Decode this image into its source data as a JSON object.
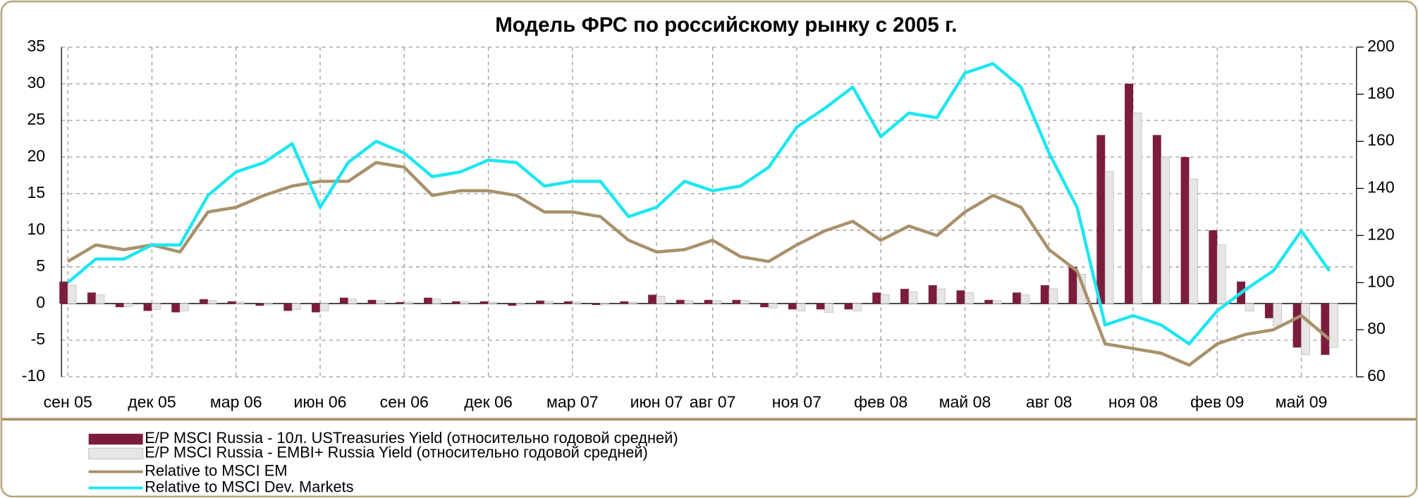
{
  "chart_data": {
    "type": "bar_line",
    "title": "Модель ФРС по российскому рынку с 2005 г.",
    "categories": [
      "сен 05",
      null,
      null,
      "дек 05",
      null,
      null,
      "мар 06",
      null,
      null,
      "июн 06",
      null,
      null,
      "сен 06",
      null,
      null,
      "дек 06",
      null,
      null,
      "мар 07",
      null,
      null,
      "июн 07",
      null,
      "авг 07",
      null,
      null,
      "ноя 07",
      null,
      null,
      "фев 08",
      null,
      null,
      "май 08",
      null,
      null,
      "авг 08",
      null,
      null,
      "ноя 08",
      null,
      null,
      "фев 09",
      null,
      null,
      "май 09",
      null
    ],
    "series": [
      {
        "name": "E/P MSCI Russia - 10л. USTreasuries Yield (относительно годовой средней)",
        "kind": "bar",
        "color": "#7b1c3e",
        "values": [
          3,
          1.5,
          -0.5,
          -1,
          -1.2,
          0.6,
          0.3,
          -0.3,
          -1,
          -1.2,
          0.8,
          0.5,
          0.2,
          0.8,
          0.3,
          0.3,
          -0.3,
          0.4,
          0.3,
          -0.2,
          0.3,
          1.2,
          0.5,
          0.5,
          0.5,
          -0.5,
          -0.8,
          -0.8,
          -0.8,
          1.5,
          2,
          2.5,
          1.8,
          0.5,
          1.5,
          2.5,
          5,
          23,
          30,
          23,
          20,
          10,
          3,
          -2,
          -6,
          -7
        ]
      },
      {
        "name": "E/P MSCI Russia - EMBI+ Russia Yield (относительно годовой средней)",
        "kind": "bar",
        "color": "#e6e6e6",
        "values": [
          2.5,
          1.2,
          -0.4,
          -0.8,
          -1,
          0.4,
          0.2,
          -0.2,
          -0.8,
          -1,
          0.6,
          0.4,
          0.2,
          0.6,
          0.3,
          0.2,
          -0.2,
          0.3,
          0.2,
          -0.2,
          0.2,
          1,
          0.4,
          0.4,
          0.4,
          -0.6,
          -1,
          -1.2,
          -1,
          1.2,
          1.6,
          2,
          1.5,
          0.4,
          1.2,
          2,
          4,
          18,
          26,
          20,
          17,
          8,
          -1,
          -3,
          -7,
          -6
        ]
      },
      {
        "name": "Relative to MSCI EM",
        "kind": "line",
        "axis": "y2",
        "color": "#a8916a",
        "values": [
          109,
          116,
          114,
          116,
          113,
          130,
          132,
          137,
          141,
          143,
          143,
          151,
          149,
          137,
          139,
          139,
          137,
          130,
          130,
          128,
          118,
          113,
          114,
          118,
          111,
          109,
          116,
          122,
          126,
          118,
          124,
          120,
          130,
          137,
          132,
          114,
          105,
          74,
          72,
          70,
          65,
          74,
          78,
          80,
          86,
          76
        ]
      },
      {
        "name": "Relative to MSCI Dev. Markets",
        "kind": "line",
        "axis": "y2",
        "color": "#1ee6f0",
        "values": [
          100,
          110,
          110,
          116,
          116,
          137,
          147,
          151,
          159,
          132,
          151,
          160,
          155,
          145,
          147,
          152,
          151,
          141,
          143,
          143,
          128,
          132,
          143,
          139,
          141,
          149,
          166,
          174,
          183,
          162,
          172,
          170,
          189,
          193,
          183,
          155,
          132,
          82,
          86,
          82,
          74,
          88,
          97,
          105,
          122,
          105
        ]
      }
    ],
    "ylim": [
      -10,
      35
    ],
    "yticks": [
      -10,
      -5,
      0,
      5,
      10,
      15,
      20,
      25,
      30,
      35
    ],
    "y2lim": [
      60,
      200
    ],
    "y2ticks": [
      60,
      80,
      100,
      120,
      140,
      160,
      180,
      200
    ],
    "grid": true
  }
}
